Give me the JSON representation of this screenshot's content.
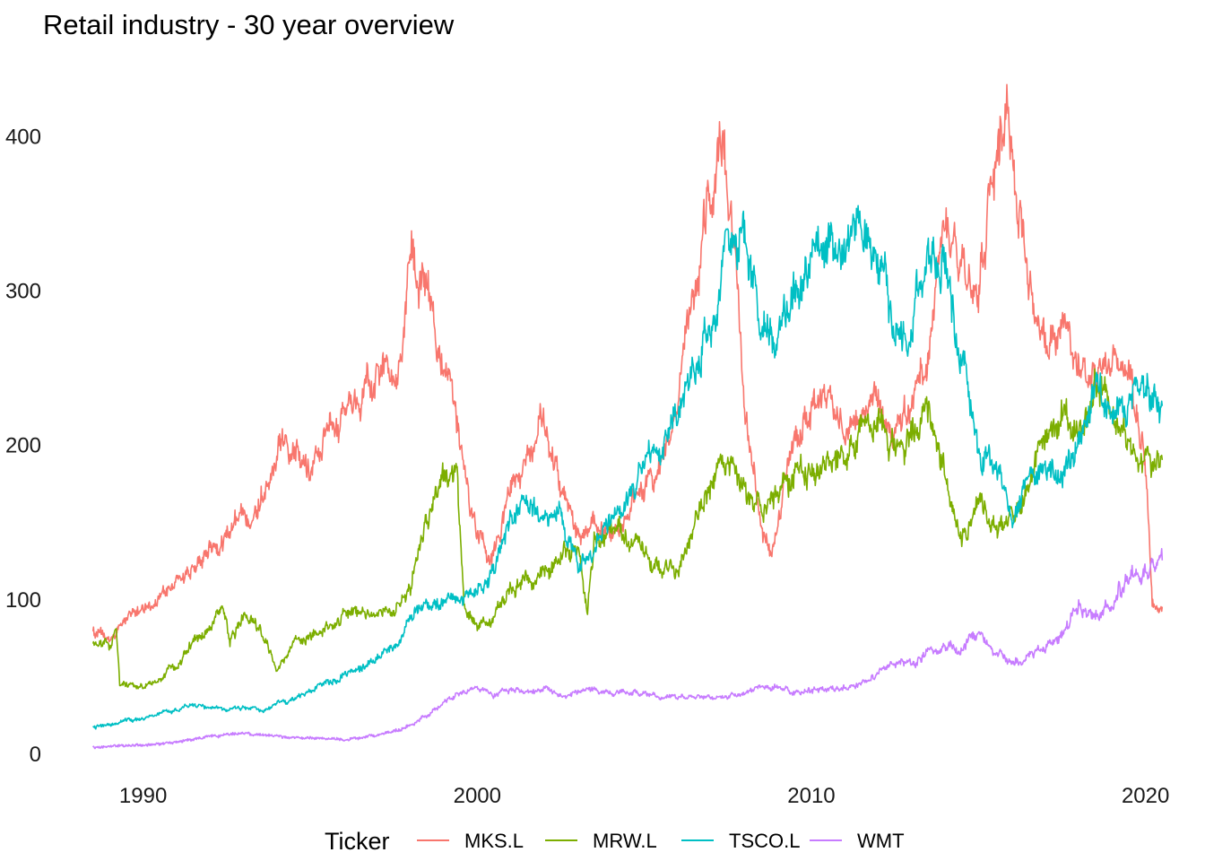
{
  "chart_data": {
    "type": "line",
    "title": "Retail industry - 30 year overview",
    "xlabel": "",
    "ylabel": "",
    "xlim": [
      1988.4,
      2020.6
    ],
    "ylim": [
      0,
      440
    ],
    "x_ticks": [
      "1990",
      "2000",
      "2010",
      "2020"
    ],
    "y_ticks": [
      "0",
      "100",
      "200",
      "300",
      "400"
    ],
    "grid": false,
    "legend": {
      "title": "Ticker",
      "position": "bottom"
    },
    "series": [
      {
        "name": "MKS.L",
        "color": "#F8766D",
        "points": [
          [
            1988.5,
            80
          ],
          [
            1989.0,
            72
          ],
          [
            1989.5,
            88
          ],
          [
            1990.0,
            95
          ],
          [
            1990.5,
            100
          ],
          [
            1991.0,
            110
          ],
          [
            1991.5,
            120
          ],
          [
            1992.0,
            130
          ],
          [
            1992.5,
            143
          ],
          [
            1993.0,
            150
          ],
          [
            1993.5,
            165
          ],
          [
            1994.0,
            200
          ],
          [
            1994.5,
            205
          ],
          [
            1995.0,
            185
          ],
          [
            1995.5,
            205
          ],
          [
            1996.0,
            215
          ],
          [
            1996.5,
            225
          ],
          [
            1997.0,
            250
          ],
          [
            1997.5,
            245
          ],
          [
            1998.0,
            320
          ],
          [
            1998.5,
            295
          ],
          [
            1999.0,
            240
          ],
          [
            1999.5,
            200
          ],
          [
            2000.0,
            140
          ],
          [
            2000.5,
            130
          ],
          [
            2001.0,
            175
          ],
          [
            2001.5,
            185
          ],
          [
            2002.0,
            220
          ],
          [
            2002.5,
            170
          ],
          [
            2003.0,
            140
          ],
          [
            2003.5,
            150
          ],
          [
            2004.0,
            135
          ],
          [
            2004.5,
            160
          ],
          [
            2005.0,
            175
          ],
          [
            2005.5,
            180
          ],
          [
            2006.0,
            230
          ],
          [
            2006.5,
            300
          ],
          [
            2007.0,
            360
          ],
          [
            2007.4,
            395
          ],
          [
            2007.8,
            300
          ],
          [
            2008.0,
            225
          ],
          [
            2008.5,
            145
          ],
          [
            2008.8,
            125
          ],
          [
            2009.0,
            150
          ],
          [
            2009.5,
            200
          ],
          [
            2010.0,
            225
          ],
          [
            2010.5,
            235
          ],
          [
            2011.0,
            210
          ],
          [
            2011.5,
            220
          ],
          [
            2012.0,
            230
          ],
          [
            2012.5,
            200
          ],
          [
            2013.0,
            225
          ],
          [
            2013.5,
            260
          ],
          [
            2014.0,
            340
          ],
          [
            2014.5,
            320
          ],
          [
            2015.0,
            300
          ],
          [
            2015.5,
            375
          ],
          [
            2015.8,
            425
          ],
          [
            2016.0,
            380
          ],
          [
            2016.5,
            320
          ],
          [
            2017.0,
            260
          ],
          [
            2017.5,
            280
          ],
          [
            2018.0,
            260
          ],
          [
            2018.5,
            240
          ],
          [
            2019.0,
            255
          ],
          [
            2019.5,
            240
          ],
          [
            2020.0,
            195
          ],
          [
            2020.2,
            100
          ],
          [
            2020.5,
            95
          ]
        ]
      },
      {
        "name": "MRW.L",
        "color": "#7CAE00",
        "points": [
          [
            1988.5,
            70
          ],
          [
            1989.0,
            68
          ],
          [
            1989.2,
            80
          ],
          [
            1989.3,
            44
          ],
          [
            1989.8,
            42
          ],
          [
            1990.5,
            48
          ],
          [
            1991.0,
            56
          ],
          [
            1991.5,
            72
          ],
          [
            1992.0,
            80
          ],
          [
            1992.4,
            98
          ],
          [
            1992.6,
            72
          ],
          [
            1993.0,
            90
          ],
          [
            1993.5,
            80
          ],
          [
            1994.0,
            55
          ],
          [
            1994.5,
            70
          ],
          [
            1995.0,
            76
          ],
          [
            1995.5,
            83
          ],
          [
            1996.0,
            90
          ],
          [
            1996.5,
            92
          ],
          [
            1997.0,
            90
          ],
          [
            1997.5,
            92
          ],
          [
            1998.0,
            110
          ],
          [
            1998.5,
            155
          ],
          [
            1999.0,
            175
          ],
          [
            1999.4,
            185
          ],
          [
            1999.6,
            100
          ],
          [
            2000.0,
            80
          ],
          [
            2000.5,
            90
          ],
          [
            2001.0,
            105
          ],
          [
            2001.5,
            115
          ],
          [
            2002.0,
            120
          ],
          [
            2002.5,
            125
          ],
          [
            2003.0,
            130
          ],
          [
            2003.3,
            90
          ],
          [
            2003.5,
            135
          ],
          [
            2004.0,
            140
          ],
          [
            2004.5,
            145
          ],
          [
            2005.0,
            130
          ],
          [
            2005.5,
            115
          ],
          [
            2006.0,
            120
          ],
          [
            2006.5,
            145
          ],
          [
            2007.0,
            180
          ],
          [
            2007.5,
            195
          ],
          [
            2008.0,
            180
          ],
          [
            2008.5,
            160
          ],
          [
            2009.0,
            170
          ],
          [
            2009.5,
            180
          ],
          [
            2010.0,
            185
          ],
          [
            2010.5,
            190
          ],
          [
            2011.0,
            195
          ],
          [
            2011.5,
            210
          ],
          [
            2012.0,
            215
          ],
          [
            2012.5,
            200
          ],
          [
            2013.0,
            210
          ],
          [
            2013.5,
            220
          ],
          [
            2014.0,
            180
          ],
          [
            2014.5,
            140
          ],
          [
            2015.0,
            160
          ],
          [
            2015.5,
            145
          ],
          [
            2016.0,
            155
          ],
          [
            2016.5,
            170
          ],
          [
            2017.0,
            210
          ],
          [
            2017.5,
            225
          ],
          [
            2018.0,
            205
          ],
          [
            2018.5,
            240
          ],
          [
            2019.0,
            225
          ],
          [
            2019.5,
            195
          ],
          [
            2020.0,
            185
          ],
          [
            2020.5,
            190
          ]
        ]
      },
      {
        "name": "TSCO.L",
        "color": "#00BFC4",
        "points": [
          [
            1988.5,
            17
          ],
          [
            1989.0,
            18
          ],
          [
            1989.5,
            22
          ],
          [
            1990.0,
            23
          ],
          [
            1990.5,
            26
          ],
          [
            1991.0,
            28
          ],
          [
            1991.5,
            32
          ],
          [
            1992.0,
            30
          ],
          [
            1992.5,
            28
          ],
          [
            1993.0,
            30
          ],
          [
            1993.5,
            28
          ],
          [
            1994.0,
            32
          ],
          [
            1994.5,
            33
          ],
          [
            1995.0,
            40
          ],
          [
            1995.5,
            45
          ],
          [
            1996.0,
            50
          ],
          [
            1996.5,
            55
          ],
          [
            1997.0,
            62
          ],
          [
            1997.5,
            68
          ],
          [
            1998.0,
            85
          ],
          [
            1998.5,
            95
          ],
          [
            1999.0,
            100
          ],
          [
            1999.5,
            100
          ],
          [
            2000.0,
            105
          ],
          [
            2000.5,
            115
          ],
          [
            2001.0,
            150
          ],
          [
            2001.5,
            160
          ],
          [
            2002.0,
            150
          ],
          [
            2002.5,
            160
          ],
          [
            2003.0,
            120
          ],
          [
            2003.5,
            130
          ],
          [
            2004.0,
            150
          ],
          [
            2004.5,
            165
          ],
          [
            2005.0,
            185
          ],
          [
            2005.5,
            195
          ],
          [
            2006.0,
            220
          ],
          [
            2006.5,
            240
          ],
          [
            2007.0,
            290
          ],
          [
            2007.5,
            320
          ],
          [
            2008.0,
            340
          ],
          [
            2008.5,
            270
          ],
          [
            2009.0,
            280
          ],
          [
            2009.5,
            300
          ],
          [
            2010.0,
            315
          ],
          [
            2010.5,
            330
          ],
          [
            2011.0,
            325
          ],
          [
            2011.5,
            330
          ],
          [
            2012.0,
            320
          ],
          [
            2012.5,
            260
          ],
          [
            2013.0,
            280
          ],
          [
            2013.5,
            320
          ],
          [
            2014.0,
            320
          ],
          [
            2014.5,
            260
          ],
          [
            2015.0,
            205
          ],
          [
            2015.5,
            180
          ],
          [
            2016.0,
            155
          ],
          [
            2016.5,
            175
          ],
          [
            2017.0,
            185
          ],
          [
            2017.5,
            180
          ],
          [
            2018.0,
            205
          ],
          [
            2018.5,
            235
          ],
          [
            2019.0,
            220
          ],
          [
            2019.5,
            225
          ],
          [
            2020.0,
            240
          ],
          [
            2020.5,
            225
          ]
        ]
      },
      {
        "name": "WMT",
        "color": "#C77CFF",
        "points": [
          [
            1988.5,
            4
          ],
          [
            1989.0,
            4.5
          ],
          [
            1989.5,
            5
          ],
          [
            1990.0,
            5.5
          ],
          [
            1990.5,
            6
          ],
          [
            1991.0,
            7
          ],
          [
            1991.5,
            9
          ],
          [
            1992.0,
            11
          ],
          [
            1992.5,
            12
          ],
          [
            1993.0,
            13
          ],
          [
            1993.5,
            12
          ],
          [
            1994.0,
            11
          ],
          [
            1994.5,
            10
          ],
          [
            1995.0,
            10
          ],
          [
            1995.5,
            10
          ],
          [
            1996.0,
            9
          ],
          [
            1996.5,
            10
          ],
          [
            1997.0,
            12
          ],
          [
            1997.5,
            14
          ],
          [
            1998.0,
            18
          ],
          [
            1998.5,
            24
          ],
          [
            1999.0,
            33
          ],
          [
            1999.5,
            38
          ],
          [
            2000.0,
            43
          ],
          [
            2000.5,
            38
          ],
          [
            2001.0,
            42
          ],
          [
            2001.5,
            40
          ],
          [
            2002.0,
            42
          ],
          [
            2002.5,
            38
          ],
          [
            2003.0,
            40
          ],
          [
            2003.5,
            41
          ],
          [
            2004.0,
            40
          ],
          [
            2004.5,
            40
          ],
          [
            2005.0,
            38
          ],
          [
            2005.5,
            36
          ],
          [
            2006.0,
            35
          ],
          [
            2006.5,
            36
          ],
          [
            2007.0,
            37
          ],
          [
            2007.5,
            36
          ],
          [
            2008.0,
            38
          ],
          [
            2008.5,
            45
          ],
          [
            2009.0,
            42
          ],
          [
            2009.5,
            40
          ],
          [
            2010.0,
            41
          ],
          [
            2010.5,
            42
          ],
          [
            2011.0,
            43
          ],
          [
            2011.5,
            45
          ],
          [
            2012.0,
            52
          ],
          [
            2012.5,
            60
          ],
          [
            2013.0,
            60
          ],
          [
            2013.5,
            65
          ],
          [
            2014.0,
            68
          ],
          [
            2014.5,
            70
          ],
          [
            2015.0,
            76
          ],
          [
            2015.5,
            66
          ],
          [
            2016.0,
            58
          ],
          [
            2016.5,
            62
          ],
          [
            2017.0,
            68
          ],
          [
            2017.5,
            75
          ],
          [
            2018.0,
            95
          ],
          [
            2018.5,
            90
          ],
          [
            2019.0,
            100
          ],
          [
            2019.5,
            112
          ],
          [
            2020.0,
            118
          ],
          [
            2020.5,
            125
          ]
        ]
      }
    ]
  }
}
